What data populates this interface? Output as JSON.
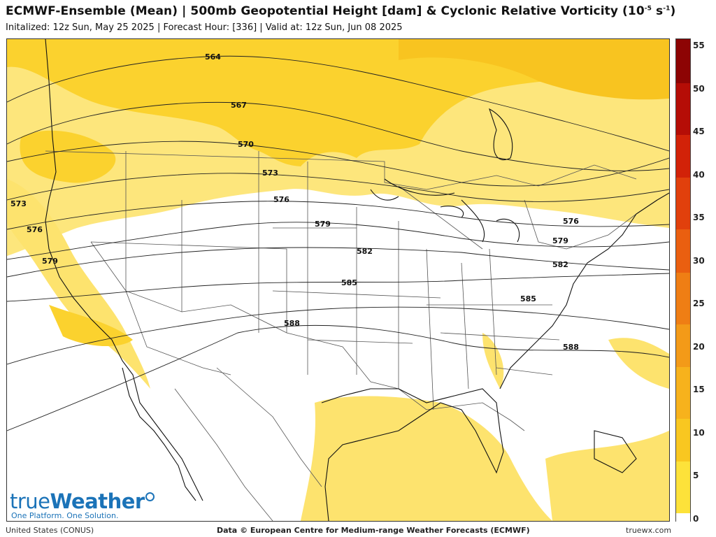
{
  "header": {
    "title": "ECMWF-Ensemble (Mean) | 500mb Geopotential Height [dam] & Cyclonic Relative Vorticity (10",
    "title_sup": "-5",
    "title_unit": " s",
    "title_sup2": "-1",
    "title_end": ")",
    "subtitle": "Initalized: 12z Sun, May 25 2025  |  Forecast Hour: [336]  |  Valid at: 12z Sun, Jun 08 2025"
  },
  "map": {
    "region": "United States (CONUS)",
    "contours": [
      {
        "label": "564"
      },
      {
        "label": "567"
      },
      {
        "label": "570"
      },
      {
        "label": "573",
        "label_west": "573"
      },
      {
        "label": "576",
        "label_west": "576",
        "label_east": "576"
      },
      {
        "label": "579",
        "label_west": "579",
        "label_east": "579"
      },
      {
        "label": "582",
        "label_east": "582"
      },
      {
        "label": "585",
        "label_east": "585"
      },
      {
        "label": "588",
        "label_east": "588"
      }
    ]
  },
  "colorbar": {
    "labels": [
      "55",
      "50",
      "45",
      "40",
      "35",
      "30",
      "25",
      "20",
      "15",
      "10",
      "5",
      "0"
    ],
    "colors": [
      "#ffffff",
      "#fde23a",
      "#f9c720",
      "#f7b21c",
      "#f39a18",
      "#ef7e14",
      "#ea5f10",
      "#e1400c",
      "#d22208",
      "#b50d06",
      "#8d0404"
    ]
  },
  "logo": {
    "name_light": "true",
    "name_bold": "Weather",
    "tagline": "One Platform. One Solution."
  },
  "footer": {
    "left": "United States (CONUS)",
    "center": "Data © European Centre for Medium-range Weather Forecasts (ECMWF)",
    "right": "truewx.com"
  }
}
